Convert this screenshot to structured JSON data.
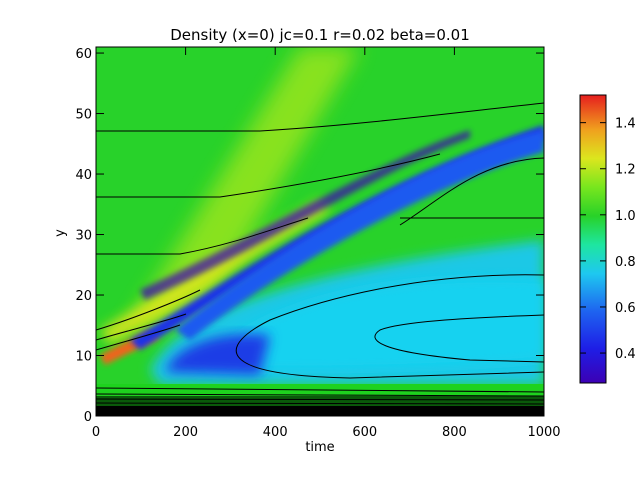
{
  "chart_data": {
    "type": "heatmap",
    "title": "Density (x=0) jc=0.1 r=0.02 beta=0.01",
    "xlabel": "time",
    "ylabel": "y",
    "xlim": [
      0,
      1000
    ],
    "ylim": [
      0,
      61
    ],
    "x_ticks": [
      0,
      200,
      400,
      600,
      800,
      1000
    ],
    "y_ticks": [
      0,
      10,
      20,
      30,
      40,
      50,
      60
    ],
    "colorbar": {
      "range": [
        0.27,
        1.52
      ],
      "ticks": [
        "0.4",
        "0.6",
        "0.8",
        "1.0",
        "1.2",
        "1.4"
      ],
      "colormap": "rainbow (purple-blue-cyan-green-yellow-red)"
    },
    "colors": {
      "background_level": "#1ed21e",
      "low": "#1e32e6",
      "high": "#e63c1e",
      "contour": "#000000"
    }
  }
}
